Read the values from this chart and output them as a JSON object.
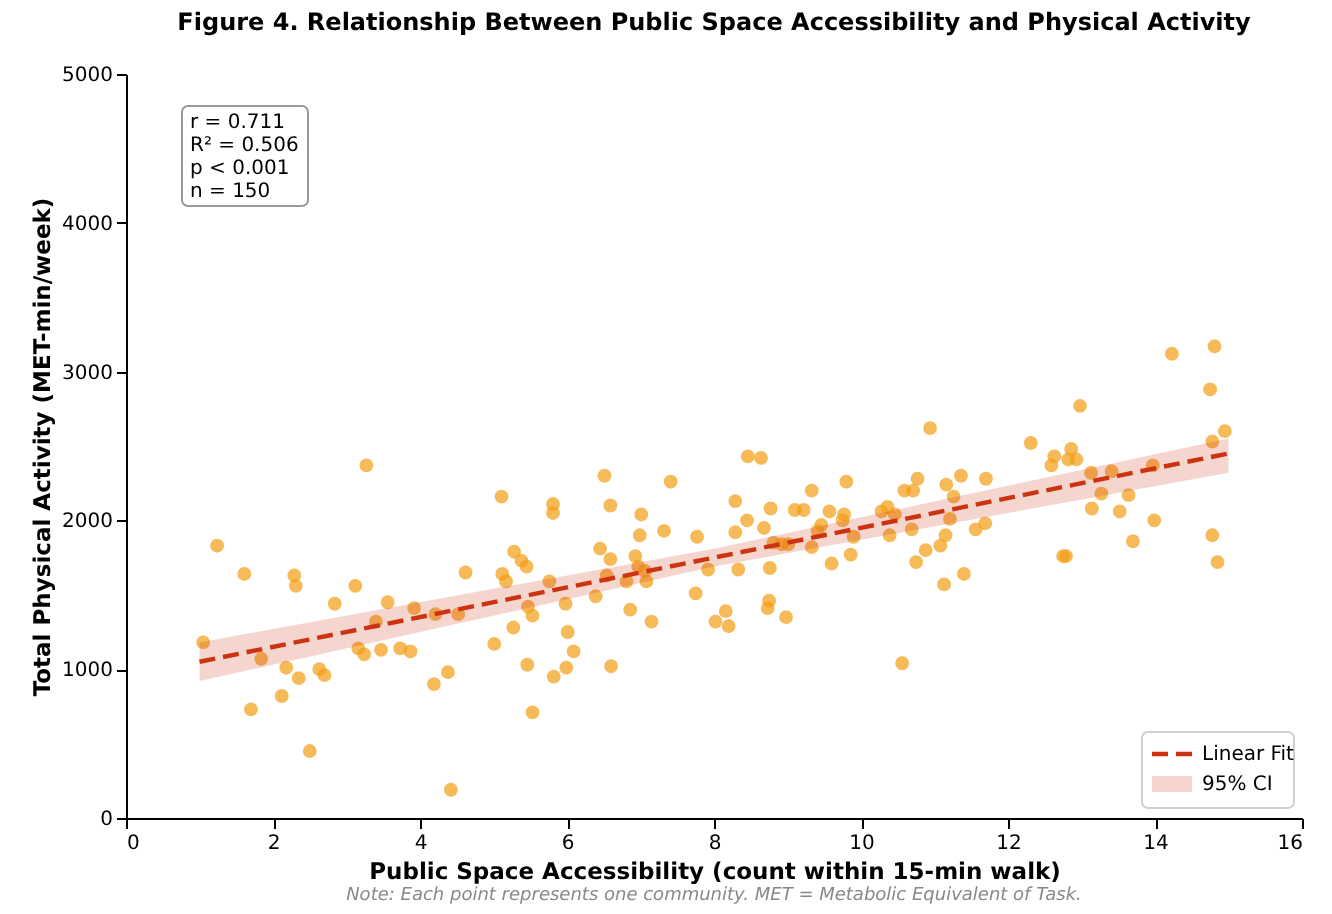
{
  "chart_data": {
    "type": "scatter",
    "title": "Figure 4. Relationship Between Public Space Accessibility and Physical Activity",
    "xlabel": "Public Space Accessibility (count within 15-min walk)",
    "ylabel": "Total Physical Activity (MET-min/week)",
    "xlim": [
      0,
      16
    ],
    "xticks": [
      0,
      2,
      4,
      6,
      8,
      10,
      12,
      14,
      16
    ],
    "ylim": [
      0,
      5000
    ],
    "yticks": [
      0,
      1000,
      2000,
      3000,
      4000,
      5000
    ],
    "grid": false,
    "legend": "bottom right",
    "marker": "circle",
    "annotations": [
      "r = 0.711\nR² = 0.506\np < 0.001\nn = 150",
      "95% CI",
      "Note: Each point represents one community. MET = Metabolic Equivalent of Task."
    ],
    "series": [
      {
        "color": "#f39c12",
        "x": [
          1.05,
          1.24,
          1.61,
          1.7,
          1.84,
          2.12,
          2.18,
          2.29,
          2.31,
          2.35,
          2.5,
          2.63,
          2.7,
          2.84,
          3.12,
          3.16,
          3.24,
          3.27,
          3.4,
          3.47,
          3.56,
          3.73,
          3.87,
          3.92,
          4.19,
          4.21,
          4.38,
          4.42,
          4.52,
          4.62,
          5.01,
          5.11,
          5.12,
          5.17,
          5.27,
          5.28,
          5.38,
          5.45,
          5.46,
          5.47,
          5.53,
          5.53,
          5.76,
          5.81,
          5.81,
          5.82,
          5.98,
          6.01,
          5.99,
          6.09,
          6.39,
          6.45,
          6.51,
          6.59,
          6.59,
          6.54,
          6.6,
          6.81,
          6.86,
          6.93,
          6.97,
          6.99,
          7.01,
          7.06,
          7.08,
          7.15,
          7.32,
          7.41,
          7.75,
          7.77,
          7.92,
          8.02,
          8.16,
          8.2,
          8.29,
          8.29,
          8.33,
          8.45,
          8.46,
          8.64,
          8.68,
          8.73,
          8.75,
          8.76,
          8.77,
          8.81,
          8.92,
          8.98,
          9.01,
          9.1,
          9.22,
          9.33,
          9.33,
          9.41,
          9.46,
          9.57,
          9.6,
          9.75,
          9.77,
          9.8,
          9.86,
          9.9,
          10.28,
          10.36,
          10.39,
          10.46,
          10.56,
          10.59,
          10.69,
          10.71,
          10.75,
          10.77,
          10.88,
          10.94,
          11.08,
          11.13,
          11.15,
          11.16,
          11.21,
          11.26,
          11.36,
          11.4,
          11.56,
          11.69,
          11.7,
          12.31,
          12.59,
          12.63,
          12.75,
          12.79,
          12.82,
          12.86,
          12.93,
          12.98,
          13.13,
          13.14,
          13.27,
          13.41,
          13.52,
          13.64,
          13.7,
          13.97,
          13.99,
          14.23,
          14.75,
          14.78,
          14.78,
          14.81,
          14.85,
          14.95
        ],
        "values": [
          1180,
          1830,
          1640,
          730,
          1070,
          820,
          1010,
          1630,
          1560,
          940,
          450,
          1000,
          960,
          1440,
          1560,
          1140,
          1100,
          2370,
          1320,
          1130,
          1450,
          1140,
          1120,
          1410,
          900,
          1370,
          980,
          190,
          1370,
          1650,
          1170,
          2160,
          1640,
          1590,
          1280,
          1790,
          1730,
          1690,
          1030,
          1420,
          1360,
          710,
          1590,
          2110,
          2050,
          950,
          1440,
          1250,
          1010,
          1120,
          1490,
          1810,
          2300,
          2100,
          1740,
          1630,
          1020,
          1590,
          1400,
          1760,
          1690,
          1900,
          2040,
          1660,
          1590,
          1320,
          1930,
          2260,
          1510,
          1890,
          1670,
          1320,
          1390,
          1290,
          2130,
          1920,
          1670,
          2000,
          2430,
          2420,
          1950,
          1410,
          1460,
          1680,
          2080,
          1850,
          1840,
          1350,
          1840,
          2070,
          2070,
          1820,
          2200,
          1930,
          1970,
          2060,
          1710,
          2000,
          2040,
          2260,
          1770,
          1890,
          2060,
          2090,
          1900,
          2040,
          1040,
          2200,
          1940,
          2200,
          1720,
          2280,
          1800,
          2620,
          1830,
          1570,
          1900,
          2240,
          2010,
          2160,
          2300,
          1640,
          1940,
          1980,
          2280,
          2520,
          2370,
          2430,
          1760,
          1760,
          2410,
          2480,
          2410,
          2770,
          2320,
          2080,
          2180,
          2330,
          2060,
          2170,
          1860,
          2370,
          2000,
          3120,
          2880,
          2530,
          1900,
          3170,
          1720,
          2600
        ]
      },
      {
        "type": "line",
        "name": "Linear Fit",
        "color": "#cc3311",
        "line_style": "dashed",
        "marker": "none",
        "x": [
          1,
          8,
          15
        ],
        "values": [
          1050,
          1750,
          2450
        ],
        "lower": [
          920,
          1690,
          2320
        ],
        "upper": [
          1180,
          1810,
          2550
        ]
      }
    ]
  }
}
